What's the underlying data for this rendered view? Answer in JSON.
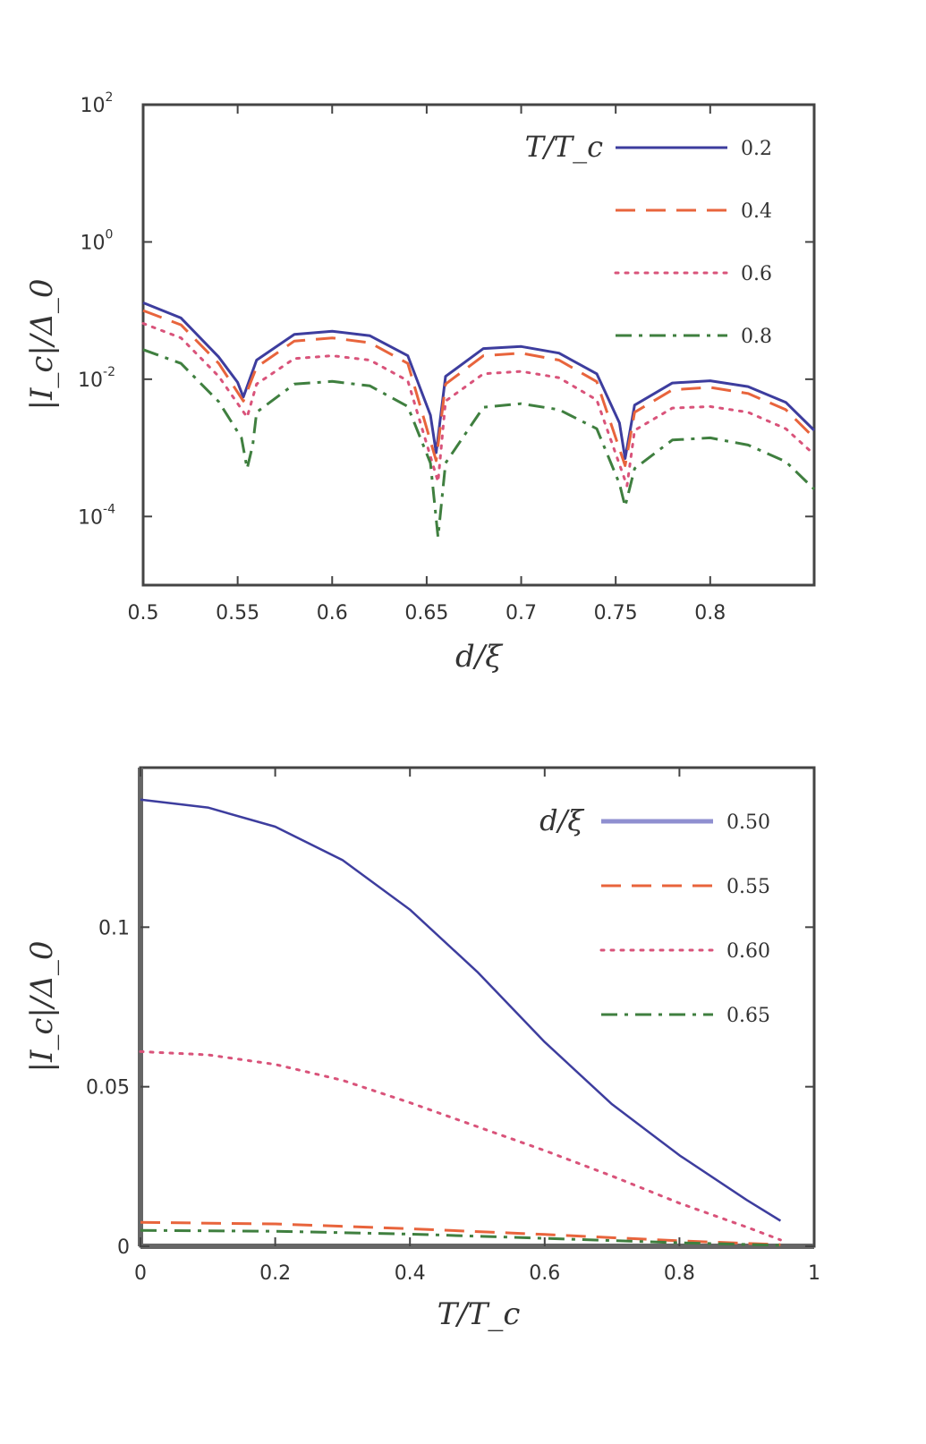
{
  "chart_data": [
    {
      "type": "line",
      "title": "",
      "xlabel": "d/ξ",
      "ylabel": "|I_c|/Δ_0",
      "xscale": "linear",
      "yscale": "log",
      "xlim": [
        0.5,
        0.855
      ],
      "ylim": [
        1e-05,
        100
      ],
      "xticks": [
        "0.5",
        "0.55",
        "0.6",
        "0.65",
        "0.7",
        "0.75",
        "0.8"
      ],
      "yticks": [
        {
          "value": 100,
          "base": "10",
          "exp": "2"
        },
        {
          "value": 1,
          "base": "10",
          "exp": "0"
        },
        {
          "value": 0.01,
          "base": "10",
          "exp": "-2"
        },
        {
          "value": 0.0001,
          "base": "10",
          "exp": "-4"
        }
      ],
      "grid": false,
      "legend": {
        "position": "top-right",
        "title": "T/T_c"
      },
      "series": [
        {
          "name": "0.2",
          "color": "#3d3d9e",
          "dash": "",
          "width": 3,
          "x": [
            0.5,
            0.52,
            0.54,
            0.55,
            0.553,
            0.56,
            0.58,
            0.6,
            0.62,
            0.64,
            0.652,
            0.655,
            0.66,
            0.68,
            0.7,
            0.72,
            0.74,
            0.752,
            0.755,
            0.76,
            0.78,
            0.8,
            0.82,
            0.84,
            0.855
          ],
          "y": [
            0.13,
            0.078,
            0.021,
            0.009,
            0.0055,
            0.019,
            0.045,
            0.05,
            0.043,
            0.022,
            0.003,
            0.00085,
            0.011,
            0.028,
            0.03,
            0.024,
            0.012,
            0.0023,
            0.0007,
            0.0042,
            0.0088,
            0.0095,
            0.0078,
            0.0046,
            0.0018
          ]
        },
        {
          "name": "0.4",
          "color": "#e8643c",
          "dash": "22,12",
          "width": 3,
          "x": [
            0.5,
            0.52,
            0.54,
            0.553,
            0.56,
            0.58,
            0.6,
            0.62,
            0.64,
            0.655,
            0.66,
            0.68,
            0.7,
            0.72,
            0.74,
            0.755,
            0.76,
            0.78,
            0.8,
            0.82,
            0.84,
            0.855
          ],
          "y": [
            0.1,
            0.062,
            0.017,
            0.0048,
            0.015,
            0.036,
            0.04,
            0.034,
            0.017,
            0.00065,
            0.0085,
            0.022,
            0.024,
            0.019,
            0.0092,
            0.00055,
            0.0033,
            0.007,
            0.0076,
            0.0062,
            0.0036,
            0.0014
          ]
        },
        {
          "name": "0.6",
          "color": "#d9537a",
          "dash": "3,8",
          "width": 3,
          "x": [
            0.5,
            0.52,
            0.54,
            0.555,
            0.56,
            0.58,
            0.6,
            0.62,
            0.64,
            0.656,
            0.66,
            0.68,
            0.7,
            0.72,
            0.74,
            0.756,
            0.76,
            0.78,
            0.8,
            0.82,
            0.84,
            0.855
          ],
          "y": [
            0.065,
            0.04,
            0.011,
            0.0028,
            0.0085,
            0.02,
            0.022,
            0.019,
            0.0095,
            0.00032,
            0.0048,
            0.012,
            0.013,
            0.0105,
            0.005,
            0.00028,
            0.0018,
            0.0038,
            0.004,
            0.0033,
            0.0019,
            0.0008
          ]
        },
        {
          "name": "0.8",
          "color": "#3f7f3f",
          "dash": "18,8,4,8",
          "width": 3,
          "x": [
            0.5,
            0.52,
            0.54,
            0.552,
            0.555,
            0.558,
            0.56,
            0.58,
            0.6,
            0.62,
            0.64,
            0.652,
            0.656,
            0.66,
            0.68,
            0.7,
            0.72,
            0.74,
            0.752,
            0.755,
            0.76,
            0.78,
            0.8,
            0.82,
            0.84,
            0.855
          ],
          "y": [
            0.027,
            0.017,
            0.0047,
            0.0014,
            0.0005,
            0.0011,
            0.0033,
            0.0085,
            0.0093,
            0.008,
            0.004,
            0.0006,
            5e-05,
            0.0006,
            0.0039,
            0.0044,
            0.0036,
            0.0019,
            0.0003,
            0.00014,
            0.0005,
            0.0013,
            0.0014,
            0.0011,
            0.00063,
            0.00025
          ]
        }
      ]
    },
    {
      "type": "line",
      "title": "",
      "xlabel": "T/T_c",
      "ylabel": "|I_c|/Δ_0",
      "xscale": "linear",
      "yscale": "linear",
      "xlim": [
        0,
        1
      ],
      "ylim": [
        0,
        0.15
      ],
      "xticks": [
        "0",
        "0.2",
        "0.4",
        "0.6",
        "0.8",
        "1"
      ],
      "yticks": [
        "0",
        "0.05",
        "0.1"
      ],
      "grid": false,
      "legend": {
        "position": "top-right",
        "title": "d/ξ"
      },
      "series": [
        {
          "name": "0.50",
          "color": "#3d3d9e",
          "dash": "",
          "width": 2.5,
          "x": [
            0,
            0.1,
            0.2,
            0.3,
            0.4,
            0.5,
            0.6,
            0.7,
            0.8,
            0.9,
            0.95
          ],
          "y": [
            0.14,
            0.1375,
            0.1315,
            0.121,
            0.1055,
            0.086,
            0.064,
            0.0445,
            0.0285,
            0.0145,
            0.008
          ]
        },
        {
          "name": "0.55",
          "color": "#e8643c",
          "dash": "22,12",
          "width": 3,
          "x": [
            0,
            0.2,
            0.4,
            0.6,
            0.8,
            0.95
          ],
          "y": [
            0.0075,
            0.007,
            0.0055,
            0.0037,
            0.0017,
            0.0005
          ]
        },
        {
          "name": "0.60",
          "color": "#d9537a",
          "dash": "3,8",
          "width": 3,
          "x": [
            0,
            0.1,
            0.2,
            0.3,
            0.4,
            0.5,
            0.6,
            0.7,
            0.8,
            0.9,
            0.95
          ],
          "y": [
            0.061,
            0.06,
            0.057,
            0.052,
            0.045,
            0.0375,
            0.03,
            0.022,
            0.0135,
            0.006,
            0.002
          ]
        },
        {
          "name": "0.65",
          "color": "#3f7f3f",
          "dash": "18,8,4,8",
          "width": 3,
          "x": [
            0,
            0.2,
            0.4,
            0.6,
            0.8,
            0.95
          ],
          "y": [
            0.005,
            0.0047,
            0.0038,
            0.0025,
            0.0011,
            0.0003
          ]
        }
      ]
    }
  ]
}
